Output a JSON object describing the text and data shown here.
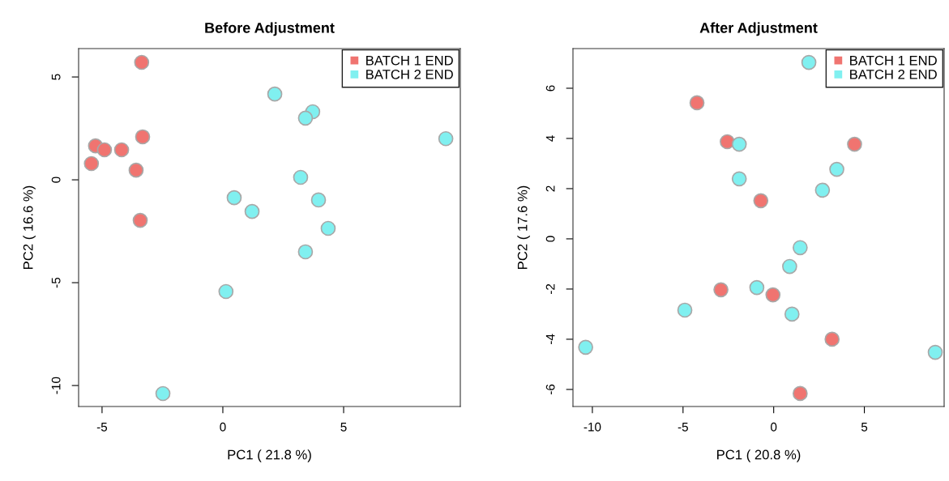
{
  "chart_data": [
    {
      "type": "scatter",
      "title": "Before Adjustment",
      "xlabel": "PC1 ( 21.8 %)",
      "ylabel": "PC2 ( 16.6 %)",
      "xlim": [
        -5.97,
        9.83
      ],
      "ylim": [
        -11.02,
        6.38
      ],
      "xticks": [
        -5,
        0,
        5
      ],
      "yticks": [
        -10,
        -5,
        0,
        5
      ],
      "legend": "top right",
      "marker": "circle",
      "grid": false,
      "series": [
        {
          "name": "BATCH 1 END",
          "color": "#f07470",
          "x": [
            -3.36,
            -3.32,
            -5.27,
            -4.9,
            -4.19,
            -5.44,
            -3.59,
            -3.42
          ],
          "values": [
            5.71,
            2.09,
            1.65,
            1.46,
            1.46,
            0.79,
            0.47,
            -1.97
          ]
        },
        {
          "name": "BATCH 2 END",
          "color": "#80f0f0",
          "x": [
            2.15,
            3.72,
            3.42,
            9.23,
            3.22,
            0.47,
            1.21,
            3.96,
            4.36,
            3.42,
            0.13,
            -2.48
          ],
          "values": [
            4.17,
            3.31,
            3.0,
            2.0,
            0.12,
            -0.87,
            -1.54,
            -0.98,
            -2.36,
            -3.5,
            -5.43,
            -10.39
          ]
        }
      ]
    },
    {
      "type": "scatter",
      "title": "After Adjustment",
      "xlabel": "PC1 ( 20.8 %)",
      "ylabel": "PC2 ( 17.6 %)",
      "xlim": [
        -11.07,
        9.4
      ],
      "ylim": [
        -6.68,
        7.58
      ],
      "xticks": [
        -10,
        -5,
        0,
        5
      ],
      "yticks": [
        -6,
        -4,
        -2,
        0,
        2,
        4,
        6
      ],
      "legend": "top right",
      "marker": "circle",
      "grid": false,
      "series": [
        {
          "name": "BATCH 1 END",
          "color": "#f07470",
          "x": [
            -4.23,
            -2.56,
            4.46,
            -0.71,
            -2.91,
            -0.04,
            3.22,
            1.46
          ],
          "values": [
            5.42,
            3.87,
            3.77,
            1.52,
            -2.03,
            -2.23,
            -4.0,
            -6.16
          ]
        },
        {
          "name": "BATCH 2 END",
          "color": "#80f0f0",
          "x": [
            1.94,
            -1.9,
            -1.9,
            3.48,
            2.69,
            1.46,
            0.88,
            -0.93,
            1.01,
            -4.9,
            -10.37,
            8.91
          ],
          "values": [
            7.03,
            3.77,
            2.39,
            2.77,
            1.94,
            -0.35,
            -1.1,
            -1.94,
            -3.0,
            -2.84,
            -4.32,
            -4.52
          ]
        }
      ]
    }
  ]
}
